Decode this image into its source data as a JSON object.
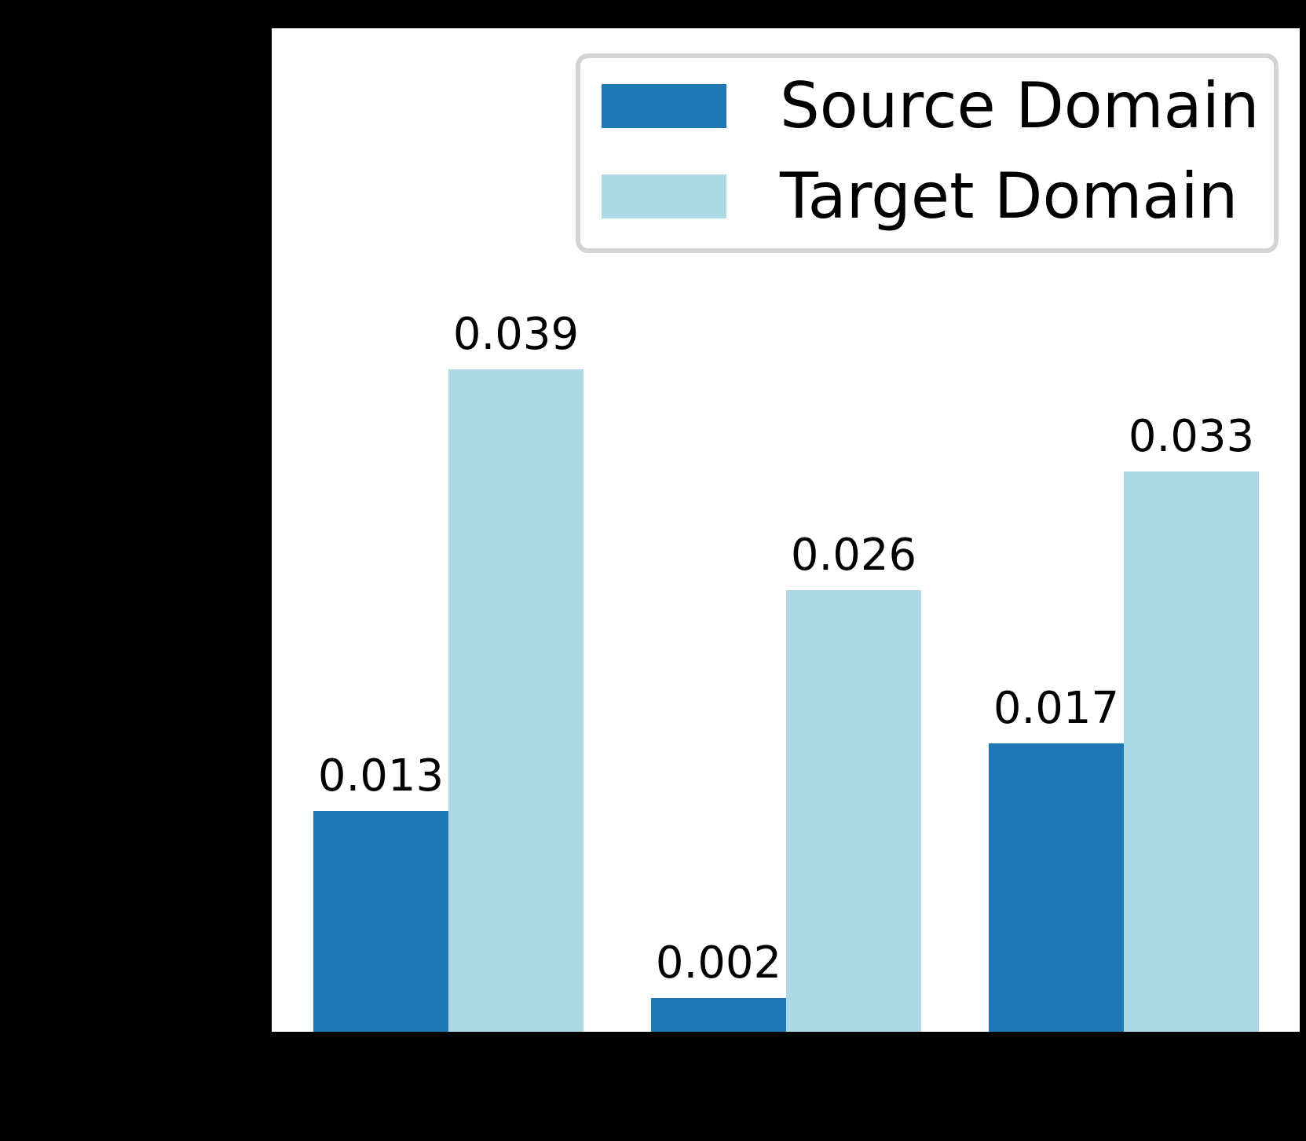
{
  "colors": {
    "figure_background": "#000000",
    "plot_background": "#ffffff",
    "axes_edge": "#000000",
    "source_domain": "#1f77b4",
    "target_domain": "#add8e6",
    "legend_border": "#d4d4d4",
    "label_text": "#000000"
  },
  "legend": {
    "items": [
      {
        "label": "Source Domain",
        "color_key": "source_domain"
      },
      {
        "label": "Target Domain",
        "color_key": "target_domain"
      }
    ]
  },
  "chart_data": {
    "type": "bar",
    "title": "",
    "xlabel": "",
    "ylabel": "",
    "categories": [
      "",
      "",
      ""
    ],
    "series": [
      {
        "name": "Source Domain",
        "slug": "source-domain",
        "color_key": "source_domain",
        "values": [
          0.013,
          0.002,
          0.017
        ],
        "labels": [
          "0.013",
          "0.002",
          "0.017"
        ]
      },
      {
        "name": "Target Domain",
        "slug": "target-domain",
        "color_key": "target_domain",
        "values": [
          0.039,
          0.026,
          0.033
        ],
        "labels": [
          "0.039",
          "0.026",
          "0.033"
        ]
      }
    ],
    "ylim": [
      0,
      0.0591
    ],
    "grid": false,
    "legend_position": "upper right",
    "bar_value_labels": true,
    "axis_tick_labels_visible": false
  }
}
